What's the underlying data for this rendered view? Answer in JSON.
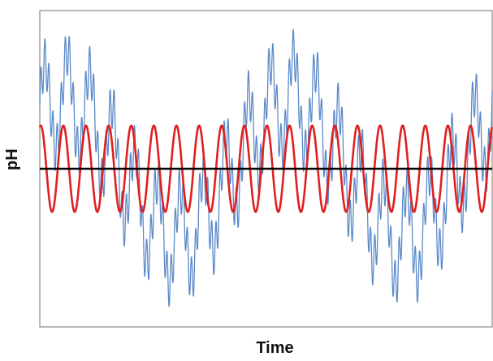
{
  "chart_data": {
    "type": "line",
    "title": "",
    "xlabel": "Time",
    "ylabel": "pH",
    "xlim": [
      0,
      10
    ],
    "ylim": [
      -1.1,
      1.1
    ],
    "grid": false,
    "legend": "none",
    "series": [
      {
        "color": "#5b8ac9",
        "style": "noisy oscillation",
        "components": {
          "slow": {
            "amplitude": 0.48,
            "period": 5.0,
            "phase": 0.9
          },
          "medium": {
            "amplitude": 0.33,
            "period": 0.5,
            "phase": 0.2
          },
          "fast": {
            "amplitude": 0.16,
            "period": 0.09,
            "phase": 0
          }
        }
      },
      {
        "color": "#e02020",
        "style": "regular oscillation",
        "components": {
          "main": {
            "amplitude": 0.3,
            "period": 0.5,
            "phase": 1.3
          }
        }
      },
      {
        "color": "#000000",
        "style": "constant",
        "value": 0.0
      }
    ]
  }
}
